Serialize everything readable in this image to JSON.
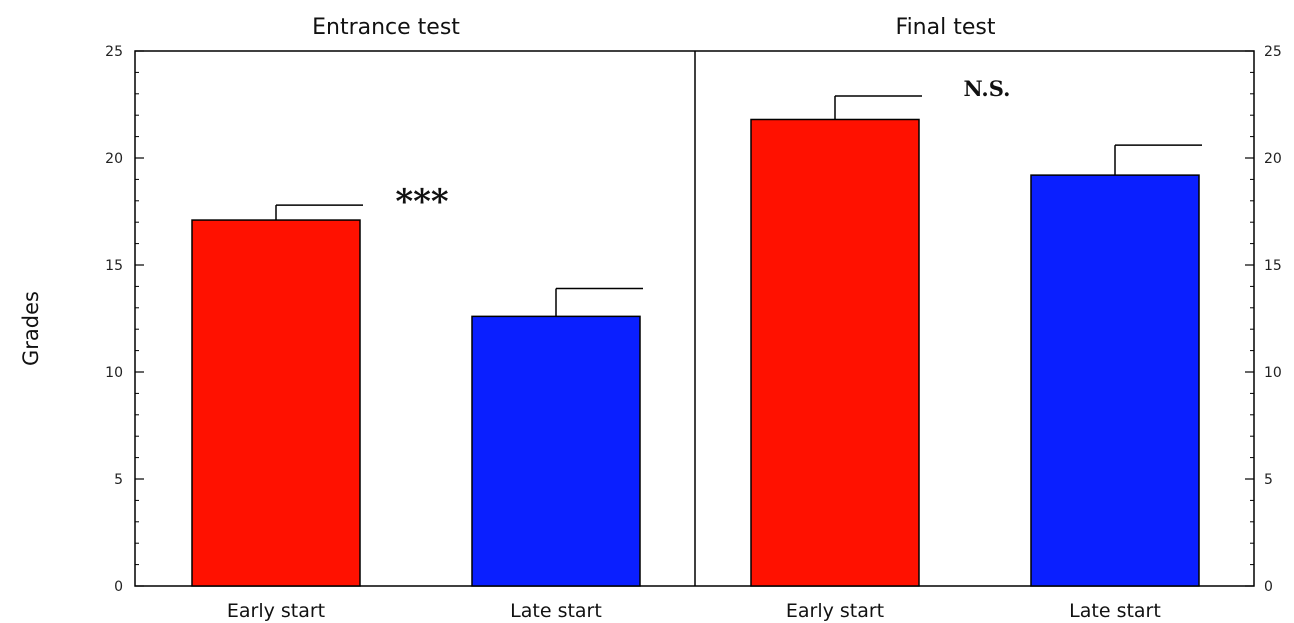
{
  "chart_data": {
    "type": "bar",
    "ylabel": "Grades",
    "ylim": [
      0,
      25
    ],
    "yticks": [
      0,
      5,
      10,
      15,
      20,
      25
    ],
    "minor_tick_step": 1,
    "categories": [
      "Early start",
      "Late start"
    ],
    "colors": {
      "Early start": "#ff1100",
      "Late start": "#0a1fff"
    },
    "panels": [
      {
        "title": "Entrance test",
        "values": [
          17.1,
          12.6
        ],
        "errors": [
          0.7,
          1.3
        ],
        "annotation": "***"
      },
      {
        "title": "Final test",
        "values": [
          21.8,
          19.2
        ],
        "errors": [
          1.1,
          1.4
        ],
        "annotation": "N.S."
      }
    ]
  }
}
